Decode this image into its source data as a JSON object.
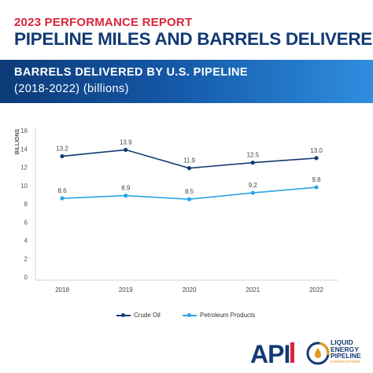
{
  "header": {
    "kicker": "2023 PERFORMANCE REPORT",
    "title": "PIPELINE MILES AND BARRELS DELIVERED"
  },
  "banner": {
    "line1": "BARRELS DELIVERED BY U.S. PIPELINE",
    "line2": "(2018-2022) (billions)"
  },
  "colors": {
    "kicker": "#d7263d",
    "title": "#123a73",
    "crude_oil": "#123a73",
    "petroleum_products": "#27a5e6"
  },
  "chart_data": {
    "type": "line",
    "title": "BARRELS DELIVERED BY U.S. PIPELINE (2018-2022) (billions)",
    "ylabel": "BILLIONS",
    "xlabel": "",
    "x": [
      "2018",
      "2019",
      "2020",
      "2021",
      "2022"
    ],
    "ylim": [
      0,
      16
    ],
    "yticks": [
      0,
      2,
      4,
      6,
      8,
      10,
      12,
      14,
      16
    ],
    "grid": false,
    "legend": "bottom-center",
    "series": [
      {
        "name": "Crude Oil",
        "values": [
          13.2,
          13.9,
          11.9,
          12.5,
          13.0
        ],
        "labels": [
          "13.2",
          "13.9",
          "11.9",
          "12.5",
          "13.0"
        ]
      },
      {
        "name": "Petroleum Products",
        "values": [
          8.6,
          8.9,
          8.5,
          9.2,
          9.8
        ],
        "labels": [
          "8.6",
          "8.9",
          "8.5",
          "9.2",
          "9.8"
        ]
      }
    ]
  },
  "logos": {
    "api": "API",
    "lepa_line1": "LIQUID",
    "lepa_line2": "ENERGY",
    "lepa_line3": "PIPELINE",
    "lepa_line4": "ASSOCIATION"
  }
}
